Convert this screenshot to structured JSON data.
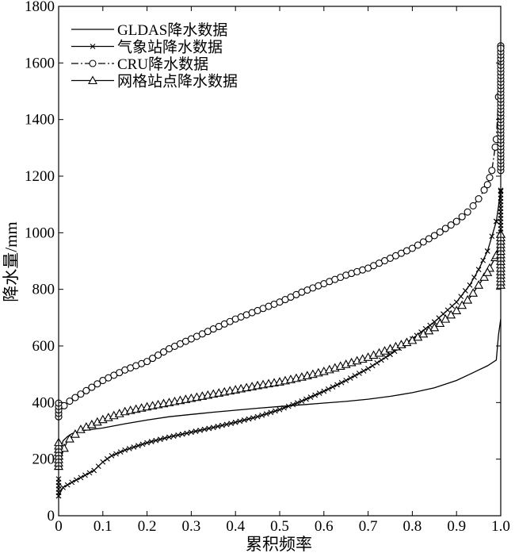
{
  "chart_data": {
    "type": "line",
    "title": "",
    "xlabel": "累积频率",
    "ylabel": "降水量/mm",
    "xlim": [
      0,
      1.0
    ],
    "ylim": [
      0,
      1800
    ],
    "x_ticks": [
      "0",
      "0.1",
      "0.2",
      "0.3",
      "0.4",
      "0.5",
      "0.6",
      "0.7",
      "0.8",
      "0.9",
      "1.0"
    ],
    "y_ticks": [
      "0",
      "200",
      "400",
      "600",
      "800",
      "1000",
      "1200",
      "1400",
      "1600",
      "1800"
    ],
    "grid": false,
    "legend_position": "top-left",
    "series": [
      {
        "name": "GLDAS降水数据",
        "marker": "none",
        "dash": "solid",
        "x": [
          0,
          0.005,
          0.01,
          0.02,
          0.03,
          0.05,
          0.1,
          0.15,
          0.2,
          0.25,
          0.3,
          0.35,
          0.4,
          0.45,
          0.5,
          0.55,
          0.6,
          0.65,
          0.7,
          0.75,
          0.8,
          0.85,
          0.9,
          0.93,
          0.95,
          0.97,
          0.99,
          0.995,
          1.0
        ],
        "y": [
          200,
          240,
          265,
          280,
          290,
          300,
          310,
          325,
          338,
          350,
          358,
          366,
          373,
          380,
          386,
          392,
          398,
          404,
          412,
          422,
          435,
          452,
          478,
          500,
          515,
          530,
          550,
          640,
          695
        ]
      },
      {
        "name": "气象站降水数据",
        "marker": "x",
        "dash": "solid",
        "x": [
          0,
          0.01,
          0.03,
          0.05,
          0.08,
          0.1,
          0.12,
          0.15,
          0.2,
          0.25,
          0.3,
          0.35,
          0.4,
          0.45,
          0.5,
          0.55,
          0.6,
          0.65,
          0.7,
          0.75,
          0.8,
          0.85,
          0.9,
          0.93,
          0.95,
          0.97,
          0.99,
          1.0
        ],
        "y": [
          70,
          100,
          118,
          135,
          160,
          190,
          212,
          232,
          258,
          278,
          295,
          312,
          330,
          350,
          375,
          405,
          440,
          478,
          520,
          570,
          625,
          685,
          755,
          815,
          870,
          935,
          1040,
          1150
        ]
      },
      {
        "name": "CRU降水数据",
        "marker": "o",
        "dash": "dashdot",
        "x": [
          0,
          0.005,
          0.01,
          0.02,
          0.05,
          0.1,
          0.15,
          0.2,
          0.25,
          0.3,
          0.35,
          0.4,
          0.45,
          0.5,
          0.55,
          0.6,
          0.65,
          0.7,
          0.75,
          0.8,
          0.85,
          0.9,
          0.93,
          0.95,
          0.97,
          0.98,
          0.99,
          0.995,
          1.0
        ],
        "y": [
          350,
          370,
          385,
          400,
          430,
          478,
          515,
          545,
          590,
          625,
          660,
          695,
          725,
          755,
          790,
          820,
          850,
          875,
          910,
          945,
          990,
          1040,
          1080,
          1120,
          1170,
          1220,
          1330,
          1480,
          1660
        ]
      },
      {
        "name": "网格站点降水数据",
        "marker": "triangle",
        "dash": "solid",
        "x": [
          0,
          0.005,
          0.01,
          0.02,
          0.05,
          0.1,
          0.15,
          0.2,
          0.25,
          0.3,
          0.35,
          0.4,
          0.45,
          0.5,
          0.55,
          0.6,
          0.65,
          0.7,
          0.75,
          0.8,
          0.85,
          0.9,
          0.93,
          0.95,
          0.97,
          0.99,
          1.0
        ],
        "y": [
          175,
          200,
          230,
          265,
          305,
          340,
          368,
          385,
          400,
          415,
          430,
          445,
          460,
          473,
          490,
          510,
          535,
          560,
          590,
          620,
          665,
          725,
          770,
          815,
          860,
          920,
          995
        ]
      }
    ]
  }
}
